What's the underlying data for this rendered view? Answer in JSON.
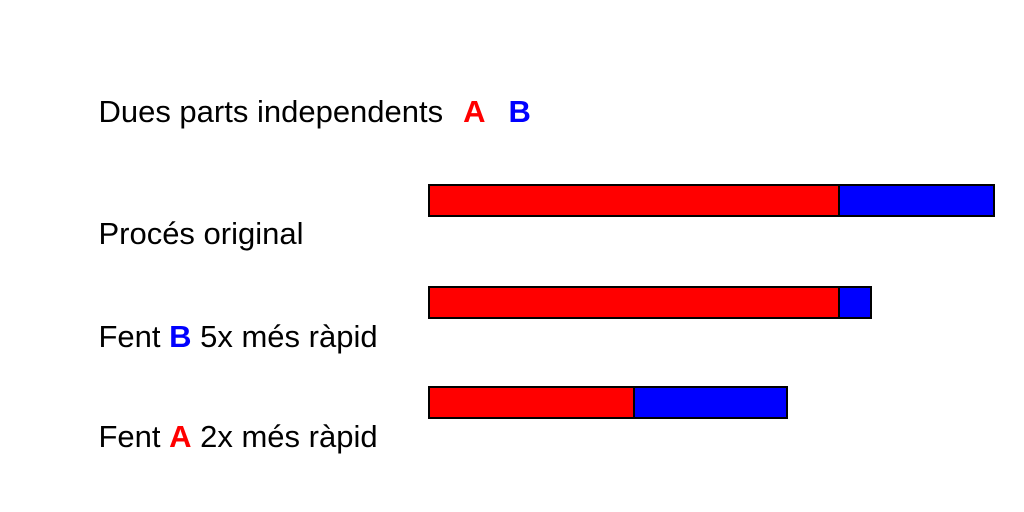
{
  "title": {
    "text": "Dues parts independents",
    "part_a": "A",
    "part_b": "B"
  },
  "colors": {
    "part_a": "#ff0000",
    "part_b": "#0000ff",
    "text": "#000000",
    "bar_border": "#000000",
    "background": "#ffffff"
  },
  "rows": [
    {
      "label": {
        "pre": "Procés original",
        "letter": "",
        "letter_color": "",
        "post": ""
      },
      "bar": {
        "a_width": 412,
        "b_width": 157
      }
    },
    {
      "label": {
        "pre": "Fent ",
        "letter": "B",
        "letter_color": "#0000ff",
        "post": " 5x més ràpid"
      },
      "bar": {
        "a_width": 412,
        "b_width": 34
      }
    },
    {
      "label": {
        "pre": "Fent ",
        "letter": "A",
        "letter_color": "#ff0000",
        "post": " 2x més ràpid"
      },
      "bar": {
        "a_width": 207,
        "b_width": 155
      }
    }
  ],
  "chart_data": {
    "type": "bar",
    "orientation": "horizontal",
    "stacked": true,
    "categories": [
      "Procés original",
      "Fent B 5x més ràpid",
      "Fent A 2x més ràpid"
    ],
    "series": [
      {
        "name": "A",
        "color": "#ff0000",
        "values": [
          412,
          412,
          207
        ]
      },
      {
        "name": "B",
        "color": "#0000ff",
        "values": [
          157,
          34,
          155
        ]
      }
    ],
    "units": "px (relative execution time)",
    "title": "Dues parts independents A B"
  }
}
